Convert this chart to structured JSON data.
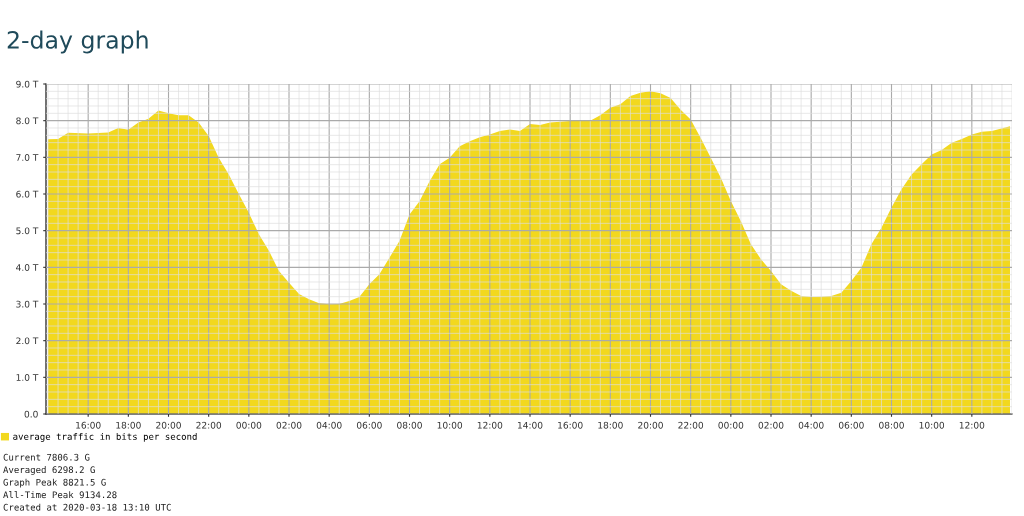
{
  "chart_data": {
    "type": "area",
    "title": "2-day graph",
    "x": [
      "2020-03-16T14:00",
      "2020-03-16T14:30",
      "2020-03-16T15:00",
      "2020-03-16T16:00",
      "2020-03-16T17:00",
      "2020-03-16T17:30",
      "2020-03-16T18:00",
      "2020-03-16T18:30",
      "2020-03-16T19:00",
      "2020-03-16T19:30",
      "2020-03-16T20:00",
      "2020-03-16T20:30",
      "2020-03-16T21:00",
      "2020-03-16T21:30",
      "2020-03-16T22:00",
      "2020-03-16T22:30",
      "2020-03-16T23:00",
      "2020-03-16T23:30",
      "2020-03-17T00:00",
      "2020-03-17T00:30",
      "2020-03-17T01:00",
      "2020-03-17T01:30",
      "2020-03-17T02:00",
      "2020-03-17T02:30",
      "2020-03-17T03:00",
      "2020-03-17T03:30",
      "2020-03-17T04:00",
      "2020-03-17T04:30",
      "2020-03-17T05:00",
      "2020-03-17T05:30",
      "2020-03-17T06:00",
      "2020-03-17T06:30",
      "2020-03-17T07:00",
      "2020-03-17T07:30",
      "2020-03-17T08:00",
      "2020-03-17T08:30",
      "2020-03-17T09:00",
      "2020-03-17T09:30",
      "2020-03-17T10:00",
      "2020-03-17T10:30",
      "2020-03-17T11:00",
      "2020-03-17T11:30",
      "2020-03-17T12:00",
      "2020-03-17T12:30",
      "2020-03-17T13:00",
      "2020-03-17T13:30",
      "2020-03-17T14:00",
      "2020-03-17T14:30",
      "2020-03-17T15:00",
      "2020-03-17T16:00",
      "2020-03-17T17:00",
      "2020-03-17T17:30",
      "2020-03-17T18:00",
      "2020-03-17T18:30",
      "2020-03-17T19:00",
      "2020-03-17T19:30",
      "2020-03-17T20:00",
      "2020-03-17T20:30",
      "2020-03-17T21:00",
      "2020-03-17T21:30",
      "2020-03-17T22:00",
      "2020-03-17T22:30",
      "2020-03-17T23:00",
      "2020-03-17T23:30",
      "2020-03-18T00:00",
      "2020-03-18T00:30",
      "2020-03-18T01:00",
      "2020-03-18T01:30",
      "2020-03-18T02:00",
      "2020-03-18T02:30",
      "2020-03-18T03:00",
      "2020-03-18T03:30",
      "2020-03-18T04:00",
      "2020-03-18T04:30",
      "2020-03-18T05:00",
      "2020-03-18T05:30",
      "2020-03-18T06:00",
      "2020-03-18T06:30",
      "2020-03-18T07:00",
      "2020-03-18T07:30",
      "2020-03-18T08:00",
      "2020-03-18T08:30",
      "2020-03-18T09:00",
      "2020-03-18T09:30",
      "2020-03-18T10:00",
      "2020-03-18T10:30",
      "2020-03-18T11:00",
      "2020-03-18T11:30",
      "2020-03-18T12:00",
      "2020-03-18T12:30",
      "2020-03-18T13:00",
      "2020-03-18T13:54"
    ],
    "series": [
      {
        "name": "average traffic in bits per second",
        "color": "#f2d81e",
        "values": [
          7.49,
          7.5,
          7.67,
          7.65,
          7.68,
          7.8,
          7.75,
          7.95,
          8.05,
          8.28,
          8.2,
          8.15,
          8.15,
          7.95,
          7.58,
          6.99,
          6.53,
          6.0,
          5.49,
          4.9,
          4.45,
          3.9,
          3.58,
          3.27,
          3.13,
          3.02,
          2.99,
          3.0,
          3.08,
          3.19,
          3.54,
          3.81,
          4.26,
          4.72,
          5.44,
          5.8,
          6.35,
          6.81,
          6.99,
          7.3,
          7.44,
          7.55,
          7.62,
          7.72,
          7.76,
          7.72,
          7.91,
          7.88,
          7.95,
          7.99,
          8.0,
          8.15,
          8.35,
          8.45,
          8.67,
          8.76,
          8.8,
          8.75,
          8.62,
          8.3,
          8.03,
          7.53,
          6.99,
          6.44,
          5.81,
          5.26,
          4.63,
          4.22,
          3.9,
          3.54,
          3.36,
          3.22,
          3.19,
          3.2,
          3.22,
          3.31,
          3.63,
          3.99,
          4.63,
          5.08,
          5.63,
          6.13,
          6.53,
          6.81,
          7.08,
          7.2,
          7.4,
          7.5,
          7.62,
          7.7,
          7.72,
          7.85
        ]
      }
    ],
    "xlim": [
      "2020-03-16T13:54",
      "2020-03-18T14:00"
    ],
    "xticks": [
      {
        "value": "2020-03-16T16:00",
        "label": "16:00"
      },
      {
        "value": "2020-03-16T18:00",
        "label": "18:00"
      },
      {
        "value": "2020-03-16T20:00",
        "label": "20:00"
      },
      {
        "value": "2020-03-16T22:00",
        "label": "22:00"
      },
      {
        "value": "2020-03-17T00:00",
        "label": "00:00"
      },
      {
        "value": "2020-03-17T02:00",
        "label": "02:00"
      },
      {
        "value": "2020-03-17T04:00",
        "label": "04:00"
      },
      {
        "value": "2020-03-17T06:00",
        "label": "06:00"
      },
      {
        "value": "2020-03-17T08:00",
        "label": "08:00"
      },
      {
        "value": "2020-03-17T10:00",
        "label": "10:00"
      },
      {
        "value": "2020-03-17T12:00",
        "label": "12:00"
      },
      {
        "value": "2020-03-17T14:00",
        "label": "14:00"
      },
      {
        "value": "2020-03-17T16:00",
        "label": "16:00"
      },
      {
        "value": "2020-03-17T18:00",
        "label": "18:00"
      },
      {
        "value": "2020-03-17T20:00",
        "label": "20:00"
      },
      {
        "value": "2020-03-17T22:00",
        "label": "22:00"
      },
      {
        "value": "2020-03-18T00:00",
        "label": "00:00"
      },
      {
        "value": "2020-03-18T02:00",
        "label": "02:00"
      },
      {
        "value": "2020-03-18T04:00",
        "label": "04:00"
      },
      {
        "value": "2020-03-18T06:00",
        "label": "06:00"
      },
      {
        "value": "2020-03-18T08:00",
        "label": "08:00"
      },
      {
        "value": "2020-03-18T10:00",
        "label": "10:00"
      },
      {
        "value": "2020-03-18T12:00",
        "label": "12:00"
      }
    ],
    "ylim": [
      0,
      9
    ],
    "yticks": [
      {
        "value": 0,
        "label": "0.0"
      },
      {
        "value": 1,
        "label": "1.0 T"
      },
      {
        "value": 2,
        "label": "2.0 T"
      },
      {
        "value": 3,
        "label": "3.0 T"
      },
      {
        "value": 4,
        "label": "4.0 T"
      },
      {
        "value": 5,
        "label": "5.0 T"
      },
      {
        "value": 6,
        "label": "6.0 T"
      },
      {
        "value": 7,
        "label": "7.0 T"
      },
      {
        "value": 8,
        "label": "8.0 T"
      },
      {
        "value": 9,
        "label": "9.0 T"
      }
    ],
    "grid": true,
    "legend": "bottom",
    "annotations": [
      "Current 7806.3 G",
      "Averaged 6298.2 G",
      "Graph Peak 8821.5 G",
      "All-Time Peak 9134.28",
      "Created at 2020-03-18 13:10 UTC"
    ]
  }
}
